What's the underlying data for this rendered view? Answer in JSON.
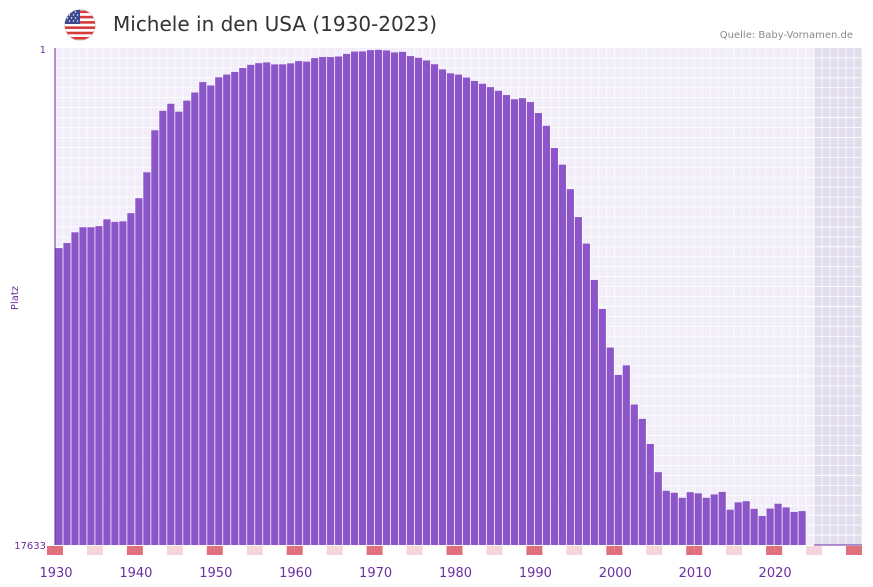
{
  "header": {
    "title": "Michele in den USA (1930-2023)",
    "source": "Quelle: Baby-Vornamen.de",
    "flag_icon": "us-flag-icon"
  },
  "colors": {
    "bar": "#8c55c8",
    "plot_bg": "#f1edf9",
    "future_bg": "#e2dded",
    "grid": "#ffffff",
    "axis": "#6a2fa0",
    "decade_marker": "#e0707c",
    "halfdecade_marker": "#f6d5da"
  },
  "chart_data": {
    "type": "bar",
    "title": "Michele in den USA (1930-2023)",
    "xlabel": "",
    "ylabel": "Platz",
    "y_top_label": "1",
    "y_bottom_label": "17633",
    "ylim": [
      17633,
      1
    ],
    "xlim": [
      1930,
      2030
    ],
    "x_ticks": [
      1930,
      1940,
      1950,
      1960,
      1970,
      1980,
      1990,
      2000,
      2010,
      2020
    ],
    "x_tick_labels": [
      "1930",
      "1940",
      "1950",
      "1960",
      "1970",
      "1980",
      "1990",
      "2000",
      "2010",
      "2020"
    ],
    "future_start": 2024,
    "years": [
      1929,
      1930,
      1931,
      1932,
      1933,
      1934,
      1935,
      1936,
      1937,
      1938,
      1939,
      1940,
      1941,
      1942,
      1943,
      1944,
      1945,
      1946,
      1947,
      1948,
      1949,
      1950,
      1951,
      1952,
      1953,
      1954,
      1955,
      1956,
      1957,
      1958,
      1959,
      1960,
      1961,
      1962,
      1963,
      1964,
      1965,
      1966,
      1967,
      1968,
      1969,
      1970,
      1971,
      1972,
      1973,
      1974,
      1975,
      1976,
      1977,
      1978,
      1979,
      1980,
      1981,
      1982,
      1983,
      1984,
      1985,
      1986,
      1987,
      1988,
      1989,
      1990,
      1991,
      1992,
      1993,
      1994,
      1995,
      1996,
      1997,
      1998,
      1999,
      2000,
      2001,
      2002,
      2003,
      2004,
      2005,
      2006,
      2007,
      2008,
      2009,
      2010,
      2011,
      2012,
      2013,
      2014,
      2015,
      2016,
      2017,
      2018,
      2019,
      2020,
      2021,
      2022,
      2023
    ],
    "ranks": [
      7100,
      6920,
      6540,
      6360,
      6360,
      6320,
      6080,
      6170,
      6150,
      5860,
      5330,
      4410,
      2920,
      2230,
      1980,
      2260,
      1870,
      1580,
      1210,
      1330,
      1040,
      942,
      851,
      711,
      599,
      540,
      512,
      583,
      581,
      546,
      465,
      485,
      358,
      321,
      322,
      302,
      211,
      127,
      122,
      76,
      67,
      88,
      158,
      138,
      288,
      348,
      443,
      578,
      760,
      898,
      945,
      1050,
      1170,
      1270,
      1390,
      1520,
      1670,
      1820,
      1780,
      1920,
      2310,
      2760,
      3550,
      4140,
      5010,
      6000,
      6940,
      8230,
      9260,
      10630,
      11600,
      11260,
      12650,
      13160,
      14050,
      15050,
      15710,
      15780,
      15960,
      15760,
      15800,
      15960,
      15840,
      15750,
      16380,
      16120,
      16080,
      16350,
      16600,
      16340,
      16170,
      16300,
      16460,
      16430,
      17633
    ],
    "marker_years": [
      1928,
      1929,
      1933,
      1934,
      1938,
      1939,
      1943,
      1944,
      1948,
      1949,
      1953,
      1954,
      1958,
      1959,
      1963,
      1964,
      1968,
      1969,
      1973,
      1974,
      1978,
      1979,
      1983,
      1984,
      1988,
      1989,
      1993,
      1994,
      1998,
      1999,
      2003,
      2004,
      2008,
      2009,
      2013,
      2014,
      2018,
      2019,
      2023,
      2024,
      2028,
      2029
    ]
  }
}
